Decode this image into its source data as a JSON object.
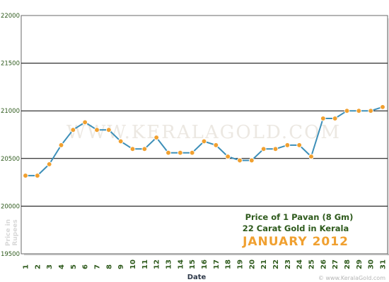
{
  "chart_data": {
    "type": "line",
    "x": [
      "1",
      "2",
      "3",
      "4",
      "5",
      "6",
      "7",
      "8",
      "9",
      "10",
      "11",
      "12",
      "13",
      "14",
      "15",
      "16",
      "17",
      "18",
      "19",
      "20",
      "21",
      "22",
      "23",
      "24",
      "25",
      "26",
      "27",
      "28",
      "29",
      "30",
      "31"
    ],
    "values": [
      20320,
      20320,
      20440,
      20640,
      20800,
      20880,
      20800,
      20800,
      20680,
      20600,
      20600,
      20720,
      20560,
      20560,
      20560,
      20680,
      20640,
      20520,
      20480,
      20480,
      20600,
      20600,
      20640,
      20640,
      20520,
      20920,
      20920,
      21000,
      21000,
      21000,
      21040
    ],
    "ylim": [
      19500,
      22000
    ],
    "yticks": [
      "19500",
      "20000",
      "20500",
      "21000",
      "21500",
      "22000"
    ],
    "xlabel": "Date",
    "ylabel": "Price in Rupees",
    "grid": "horizontal",
    "line_color": "#3d8fb8",
    "marker_color": "#f0a030",
    "annotation": {
      "line1": "Price of 1 Pavan (8 Gm)",
      "line2": "22 Carat Gold in Kerala",
      "line3": "JANUARY 2012"
    },
    "watermark": "WWW.KERALAGOLD.COM",
    "footer": "© www.KeralaGold.com"
  }
}
